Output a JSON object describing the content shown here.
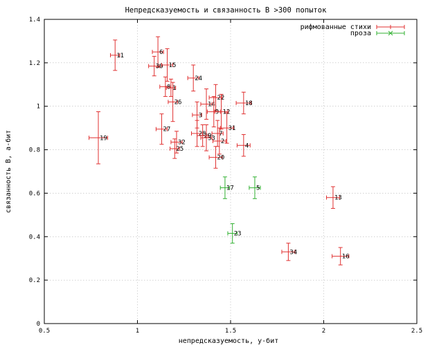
{
  "chart_data": {
    "type": "scatter",
    "title": "Непредсказуемость и связанность В >300 попыток",
    "xlabel": "непредсказуемость, у-бит",
    "ylabel": "связанность В, а-бит",
    "xlim": [
      0.5,
      2.5
    ],
    "ylim": [
      0,
      1.4
    ],
    "xticks": [
      0.5,
      1,
      1.5,
      2,
      2.5
    ],
    "yticks": [
      0,
      0.2,
      0.4,
      0.6,
      0.8,
      1,
      1.2,
      1.4
    ],
    "xtick_labels": [
      "0.5",
      "1",
      "1.5",
      "2",
      "2.5"
    ],
    "ytick_labels": [
      "0",
      "0.2",
      "0.4",
      "0.6",
      "0.8",
      "1",
      "1.2",
      "1.4"
    ],
    "grid": true,
    "legend_position": "top-right",
    "series": [
      {
        "name": "рифмованные стихи",
        "color": "#e03030",
        "points": [
          {
            "label": "11",
            "x": 0.88,
            "y": 1.235,
            "xerr": 0.025,
            "yerr": 0.07
          },
          {
            "label": "6",
            "x": 1.11,
            "y": 1.25,
            "xerr": 0.03,
            "yerr": 0.07
          },
          {
            "label": "30",
            "x": 1.09,
            "y": 1.185,
            "xerr": 0.03,
            "yerr": 0.045
          },
          {
            "label": "15",
            "x": 1.16,
            "y": 1.19,
            "xerr": 0.03,
            "yerr": 0.075
          },
          {
            "label": "24",
            "x": 1.3,
            "y": 1.13,
            "xerr": 0.03,
            "yerr": 0.06
          },
          {
            "label": "8",
            "x": 1.15,
            "y": 1.09,
            "xerr": 0.03,
            "yerr": 0.045
          },
          {
            "label": "1",
            "x": 1.18,
            "y": 1.085,
            "xerr": 0.025,
            "yerr": 0.04
          },
          {
            "label": "26",
            "x": 1.19,
            "y": 1.02,
            "xerr": 0.025,
            "yerr": 0.09
          },
          {
            "label": "22",
            "x": 1.42,
            "y": 1.04,
            "xerr": 0.035,
            "yerr": 0.06
          },
          {
            "label": "14",
            "x": 1.37,
            "y": 1.01,
            "xerr": 0.03,
            "yerr": 0.07
          },
          {
            "label": "18",
            "x": 1.57,
            "y": 1.015,
            "xerr": 0.04,
            "yerr": 0.05
          },
          {
            "label": "9",
            "x": 1.41,
            "y": 0.975,
            "xerr": 0.035,
            "yerr": 0.07
          },
          {
            "label": "12",
            "x": 1.45,
            "y": 0.975,
            "xerr": 0.035,
            "yerr": 0.08
          },
          {
            "label": "3",
            "x": 1.32,
            "y": 0.96,
            "xerr": 0.025,
            "yerr": 0.06
          },
          {
            "label": "27",
            "x": 1.13,
            "y": 0.895,
            "xerr": 0.03,
            "yerr": 0.07
          },
          {
            "label": "31",
            "x": 1.48,
            "y": 0.9,
            "xerr": 0.035,
            "yerr": 0.07
          },
          {
            "label": "7",
            "x": 1.43,
            "y": 0.875,
            "xerr": 0.03,
            "yerr": 0.06
          },
          {
            "label": "28",
            "x": 1.32,
            "y": 0.875,
            "xerr": 0.03,
            "yerr": 0.06
          },
          {
            "label": "29",
            "x": 1.35,
            "y": 0.865,
            "xerr": 0.03,
            "yerr": 0.05
          },
          {
            "label": "33",
            "x": 1.37,
            "y": 0.855,
            "xerr": 0.03,
            "yerr": 0.06
          },
          {
            "label": "2",
            "x": 1.44,
            "y": 0.84,
            "xerr": 0.035,
            "yerr": 0.06
          },
          {
            "label": "32",
            "x": 1.21,
            "y": 0.835,
            "xerr": 0.03,
            "yerr": 0.05
          },
          {
            "label": "19",
            "x": 0.79,
            "y": 0.855,
            "xerr": 0.05,
            "yerr": 0.12
          },
          {
            "label": "4",
            "x": 1.57,
            "y": 0.82,
            "xerr": 0.035,
            "yerr": 0.05
          },
          {
            "label": "25",
            "x": 1.2,
            "y": 0.805,
            "xerr": 0.025,
            "yerr": 0.045
          },
          {
            "label": "20",
            "x": 1.42,
            "y": 0.765,
            "xerr": 0.035,
            "yerr": 0.05
          },
          {
            "label": "13",
            "x": 2.05,
            "y": 0.58,
            "xerr": 0.035,
            "yerr": 0.05
          },
          {
            "label": "34",
            "x": 1.81,
            "y": 0.33,
            "xerr": 0.035,
            "yerr": 0.04
          },
          {
            "label": "16",
            "x": 2.09,
            "y": 0.31,
            "xerr": 0.045,
            "yerr": 0.04
          }
        ]
      },
      {
        "name": "проза",
        "color": "#30b030",
        "points": [
          {
            "label": "17",
            "x": 1.47,
            "y": 0.625,
            "xerr": 0.025,
            "yerr": 0.05
          },
          {
            "label": "5",
            "x": 1.63,
            "y": 0.625,
            "xerr": 0.03,
            "yerr": 0.05
          },
          {
            "label": "23",
            "x": 1.51,
            "y": 0.415,
            "xerr": 0.025,
            "yerr": 0.045
          }
        ]
      }
    ]
  }
}
